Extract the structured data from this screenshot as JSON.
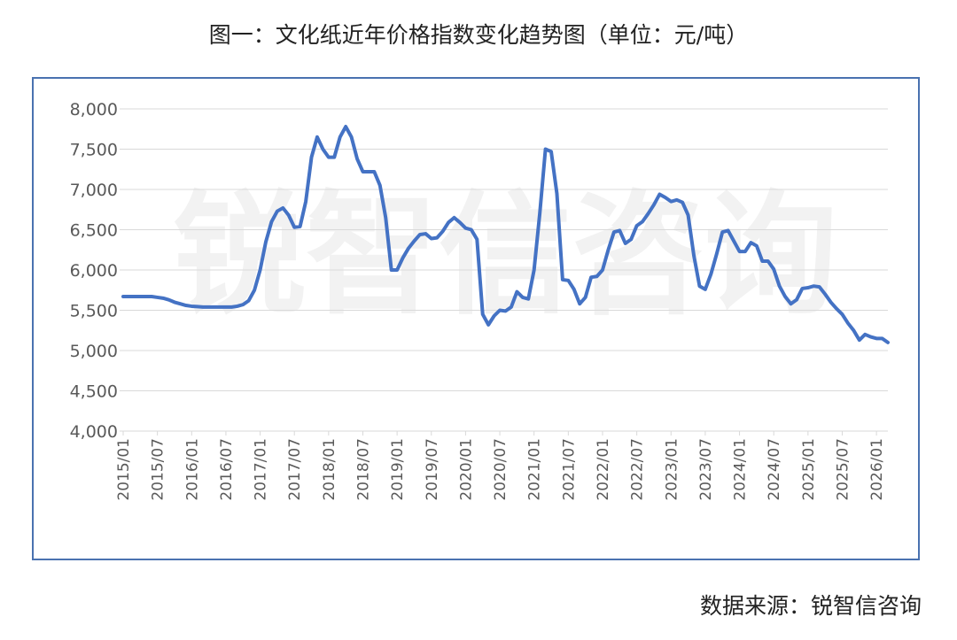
{
  "chart_data": {
    "type": "line",
    "title": "图一：文化纸近年价格指数变化趋势图（单位：元/吨）",
    "source": "数据来源：锐智信咨询",
    "watermark": "锐智信咨询",
    "categories": [
      "2015/01",
      null,
      null,
      null,
      null,
      null,
      "2015/07",
      null,
      null,
      null,
      null,
      null,
      "2016/01",
      null,
      null,
      null,
      null,
      null,
      "2016/07",
      null,
      null,
      null,
      null,
      null,
      "2017/01",
      null,
      null,
      null,
      null,
      null,
      "2017/07",
      null,
      null,
      null,
      null,
      null,
      "2018/01",
      null,
      null,
      null,
      null,
      null,
      "2018/07",
      null,
      null,
      null,
      null,
      null,
      "2019/01",
      null,
      null,
      null,
      null,
      null,
      "2019/07",
      null,
      null,
      null,
      null,
      null,
      "2020/01",
      null,
      null,
      null,
      null,
      null,
      "2020/07",
      null,
      null,
      null,
      null,
      null,
      "2021/01",
      null,
      null,
      null,
      null,
      null,
      "2021/07",
      null,
      null,
      null,
      null,
      null,
      "2022/01",
      null,
      null,
      null,
      null,
      null,
      "2022/07",
      null,
      null,
      null,
      null,
      null,
      "2023/01",
      null,
      null,
      null,
      null,
      null,
      "2023/07",
      null,
      null,
      null,
      null,
      null,
      "2024/01",
      null,
      null,
      null,
      null,
      null,
      "2024/07",
      null,
      null,
      null,
      null,
      null,
      "2025/01",
      null,
      null,
      null,
      null,
      null,
      "2025/07",
      null,
      null,
      null,
      null,
      null,
      "2026/01",
      null,
      null
    ],
    "values": [
      5670,
      5670,
      5670,
      5670,
      5670,
      5670,
      5660,
      5650,
      5630,
      5600,
      5580,
      5560,
      5550,
      5545,
      5540,
      5540,
      5540,
      5540,
      5540,
      5540,
      5550,
      5570,
      5620,
      5750,
      6000,
      6350,
      6600,
      6730,
      6770,
      6680,
      6530,
      6540,
      6850,
      7400,
      7650,
      7500,
      7400,
      7400,
      7650,
      7780,
      7650,
      7380,
      7220,
      7220,
      7220,
      7050,
      6650,
      6000,
      6000,
      6150,
      6270,
      6360,
      6440,
      6450,
      6390,
      6400,
      6480,
      6590,
      6650,
      6590,
      6520,
      6500,
      6380,
      5450,
      5320,
      5430,
      5500,
      5490,
      5540,
      5730,
      5660,
      5640,
      6000,
      6700,
      7500,
      7470,
      6950,
      5880,
      5870,
      5760,
      5580,
      5660,
      5910,
      5920,
      6000,
      6250,
      6470,
      6490,
      6330,
      6380,
      6550,
      6600,
      6700,
      6810,
      6940,
      6900,
      6850,
      6870,
      6840,
      6680,
      6180,
      5800,
      5760,
      5950,
      6200,
      6470,
      6490,
      6360,
      6230,
      6230,
      6340,
      6300,
      6110,
      6110,
      6010,
      5800,
      5670,
      5580,
      5630,
      5770,
      5780,
      5800,
      5790,
      5700,
      5600,
      5520,
      5450,
      5340,
      5250,
      5130,
      5200,
      5170,
      5150,
      5150,
      5100
    ],
    "color": "#4472c4",
    "ylim": [
      4000,
      8000
    ],
    "yticks": [
      {
        "value": 4000,
        "label": "4,000"
      },
      {
        "value": 4500,
        "label": "4,500"
      },
      {
        "value": 5000,
        "label": "5,000"
      },
      {
        "value": 5500,
        "label": "5,500"
      },
      {
        "value": 6000,
        "label": "6,000"
      },
      {
        "value": 6500,
        "label": "6,500"
      },
      {
        "value": 7000,
        "label": "7,000"
      },
      {
        "value": 7500,
        "label": "7,500"
      },
      {
        "value": 8000,
        "label": "8,000"
      }
    ],
    "grid": true
  }
}
